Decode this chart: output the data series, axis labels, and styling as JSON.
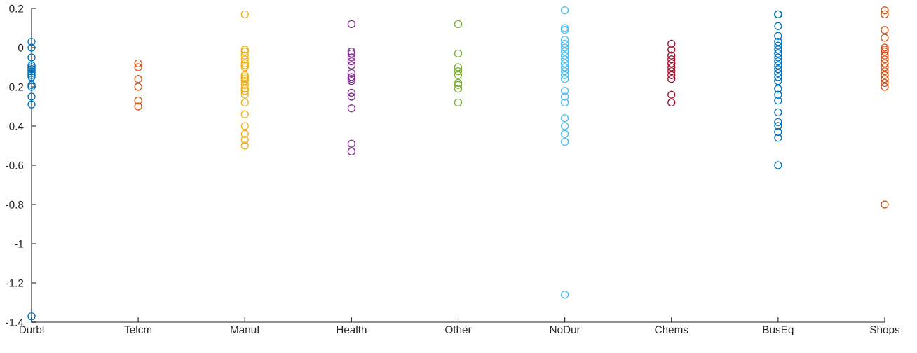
{
  "chart_data": {
    "type": "scatter",
    "marker": "circle",
    "grid": false,
    "categories": [
      "Durbl",
      "Telcm",
      "Manuf",
      "Health",
      "Other",
      "NoDur",
      "Chems",
      "BusEq",
      "Shops"
    ],
    "ylim": [
      -1.4,
      0.2
    ],
    "yticks": [
      -1.4,
      -1.2,
      -1,
      -0.8,
      -0.6,
      -0.4,
      -0.2,
      0,
      0.2
    ],
    "series": [
      {
        "color": "#0072bd",
        "x": [
          "Durbl",
          "Durbl",
          "Durbl",
          "Durbl",
          "Durbl",
          "Durbl",
          "Durbl",
          "Durbl",
          "Durbl",
          "Durbl",
          "Durbl",
          "Durbl",
          "Durbl",
          "Durbl",
          "Durbl"
        ],
        "values": [
          0.03,
          0.0,
          -0.05,
          -0.09,
          -0.1,
          -0.11,
          -0.12,
          -0.13,
          -0.14,
          -0.15,
          -0.19,
          -0.2,
          -0.25,
          -0.29,
          -1.37
        ]
      },
      {
        "color": "#d95319",
        "x": [
          "Telcm",
          "Telcm",
          "Telcm",
          "Telcm",
          "Telcm",
          "Telcm"
        ],
        "values": [
          -0.08,
          -0.1,
          -0.16,
          -0.2,
          -0.27,
          -0.3
        ]
      },
      {
        "color": "#edb120",
        "x": [
          "Manuf",
          "Manuf",
          "Manuf",
          "Manuf",
          "Manuf",
          "Manuf",
          "Manuf",
          "Manuf",
          "Manuf",
          "Manuf",
          "Manuf",
          "Manuf",
          "Manuf",
          "Manuf",
          "Manuf",
          "Manuf",
          "Manuf",
          "Manuf",
          "Manuf",
          "Manuf",
          "Manuf",
          "Manuf"
        ],
        "values": [
          0.17,
          -0.01,
          -0.02,
          -0.04,
          -0.06,
          -0.08,
          -0.09,
          -0.1,
          -0.14,
          -0.15,
          -0.16,
          -0.17,
          -0.19,
          -0.21,
          -0.22,
          -0.24,
          -0.28,
          -0.34,
          -0.4,
          -0.44,
          -0.47,
          -0.5
        ]
      },
      {
        "color": "#7e2f8e",
        "x": [
          "Health",
          "Health",
          "Health",
          "Health",
          "Health",
          "Health",
          "Health",
          "Health",
          "Health",
          "Health",
          "Health",
          "Health",
          "Health",
          "Health",
          "Health"
        ],
        "values": [
          0.12,
          -0.02,
          -0.03,
          -0.05,
          -0.07,
          -0.09,
          -0.13,
          -0.15,
          -0.16,
          -0.17,
          -0.23,
          -0.25,
          -0.31,
          -0.49,
          -0.53
        ]
      },
      {
        "color": "#77ac30",
        "x": [
          "Other",
          "Other",
          "Other",
          "Other",
          "Other",
          "Other",
          "Other",
          "Other",
          "Other"
        ],
        "values": [
          0.12,
          -0.03,
          -0.1,
          -0.12,
          -0.14,
          -0.18,
          -0.19,
          -0.21,
          -0.28
        ]
      },
      {
        "color": "#4dbeee",
        "x": [
          "NoDur",
          "NoDur",
          "NoDur",
          "NoDur",
          "NoDur",
          "NoDur",
          "NoDur",
          "NoDur",
          "NoDur",
          "NoDur",
          "NoDur",
          "NoDur",
          "NoDur",
          "NoDur",
          "NoDur",
          "NoDur",
          "NoDur",
          "NoDur",
          "NoDur",
          "NoDur",
          "NoDur",
          "NoDur"
        ],
        "values": [
          0.19,
          0.1,
          0.09,
          0.04,
          0.02,
          0.0,
          -0.02,
          -0.04,
          -0.06,
          -0.08,
          -0.1,
          -0.12,
          -0.14,
          -0.16,
          -0.22,
          -0.25,
          -0.28,
          -0.36,
          -0.4,
          -0.44,
          -0.48,
          -1.26
        ]
      },
      {
        "color": "#a2142f",
        "x": [
          "Chems",
          "Chems",
          "Chems",
          "Chems",
          "Chems",
          "Chems",
          "Chems",
          "Chems",
          "Chems",
          "Chems",
          "Chems"
        ],
        "values": [
          0.02,
          -0.01,
          -0.04,
          -0.06,
          -0.08,
          -0.1,
          -0.12,
          -0.14,
          -0.16,
          -0.24,
          -0.28
        ]
      },
      {
        "color": "#0072bd",
        "x": [
          "BusEq",
          "BusEq",
          "BusEq",
          "BusEq",
          "BusEq",
          "BusEq",
          "BusEq",
          "BusEq",
          "BusEq",
          "BusEq",
          "BusEq",
          "BusEq",
          "BusEq",
          "BusEq",
          "BusEq",
          "BusEq",
          "BusEq",
          "BusEq",
          "BusEq",
          "BusEq",
          "BusEq",
          "BusEq",
          "BusEq",
          "BusEq"
        ],
        "values": [
          0.17,
          0.17,
          0.11,
          0.06,
          0.03,
          0.01,
          -0.01,
          -0.03,
          -0.05,
          -0.07,
          -0.09,
          -0.11,
          -0.13,
          -0.15,
          -0.17,
          -0.21,
          -0.24,
          -0.27,
          -0.33,
          -0.38,
          -0.4,
          -0.43,
          -0.46,
          -0.6
        ]
      },
      {
        "color": "#d95319",
        "x": [
          "Shops",
          "Shops",
          "Shops",
          "Shops",
          "Shops",
          "Shops",
          "Shops",
          "Shops",
          "Shops",
          "Shops",
          "Shops",
          "Shops",
          "Shops",
          "Shops",
          "Shops",
          "Shops",
          "Shops"
        ],
        "values": [
          0.19,
          0.17,
          0.09,
          0.05,
          0.0,
          -0.01,
          -0.02,
          -0.04,
          -0.06,
          -0.08,
          -0.1,
          -0.12,
          -0.14,
          -0.16,
          -0.18,
          -0.2,
          -0.8
        ]
      }
    ]
  }
}
